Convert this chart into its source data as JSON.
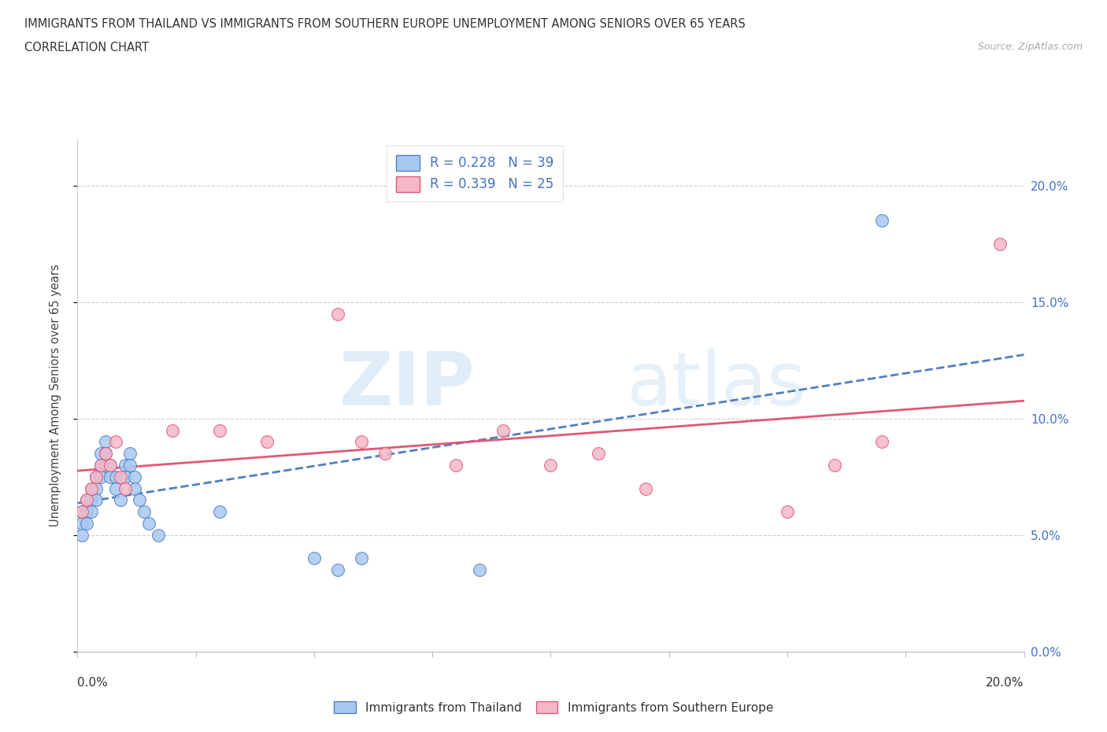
{
  "title_line1": "IMMIGRANTS FROM THAILAND VS IMMIGRANTS FROM SOUTHERN EUROPE UNEMPLOYMENT AMONG SENIORS OVER 65 YEARS",
  "title_line2": "CORRELATION CHART",
  "source": "Source: ZipAtlas.com",
  "ylabel": "Unemployment Among Seniors over 65 years",
  "R_thailand": 0.228,
  "N_thailand": 39,
  "R_southern": 0.339,
  "N_southern": 25,
  "color_thailand": "#a8c8f0",
  "color_southern": "#f4b8c8",
  "color_thailand_line": "#5080c0",
  "color_southern_line": "#e05878",
  "watermark_zip": "ZIP",
  "watermark_atlas": "atlas",
  "thailand_x": [
    0.001,
    0.001,
    0.001,
    0.002,
    0.002,
    0.002,
    0.003,
    0.003,
    0.003,
    0.004,
    0.004,
    0.004,
    0.005,
    0.005,
    0.005,
    0.006,
    0.006,
    0.006,
    0.007,
    0.007,
    0.008,
    0.008,
    0.009,
    0.01,
    0.01,
    0.011,
    0.011,
    0.012,
    0.012,
    0.013,
    0.014,
    0.015,
    0.017,
    0.03,
    0.05,
    0.055,
    0.06,
    0.085,
    0.17
  ],
  "thailand_y": [
    0.06,
    0.055,
    0.05,
    0.065,
    0.06,
    0.055,
    0.07,
    0.065,
    0.06,
    0.075,
    0.07,
    0.065,
    0.085,
    0.08,
    0.075,
    0.09,
    0.085,
    0.08,
    0.08,
    0.075,
    0.075,
    0.07,
    0.065,
    0.08,
    0.075,
    0.085,
    0.08,
    0.075,
    0.07,
    0.065,
    0.06,
    0.055,
    0.05,
    0.06,
    0.04,
    0.035,
    0.04,
    0.035,
    0.185
  ],
  "southern_x": [
    0.001,
    0.002,
    0.003,
    0.004,
    0.005,
    0.006,
    0.007,
    0.008,
    0.009,
    0.01,
    0.02,
    0.03,
    0.04,
    0.055,
    0.06,
    0.065,
    0.08,
    0.09,
    0.1,
    0.11,
    0.12,
    0.15,
    0.16,
    0.17,
    0.195
  ],
  "southern_y": [
    0.06,
    0.065,
    0.07,
    0.075,
    0.08,
    0.085,
    0.08,
    0.09,
    0.075,
    0.07,
    0.095,
    0.095,
    0.09,
    0.145,
    0.09,
    0.085,
    0.08,
    0.095,
    0.08,
    0.085,
    0.07,
    0.06,
    0.08,
    0.09,
    0.175
  ],
  "xlim": [
    0.0,
    0.2
  ],
  "ylim": [
    0.0,
    0.22
  ],
  "yticks": [
    0.0,
    0.05,
    0.1,
    0.15,
    0.2
  ],
  "xtick_count": 9
}
